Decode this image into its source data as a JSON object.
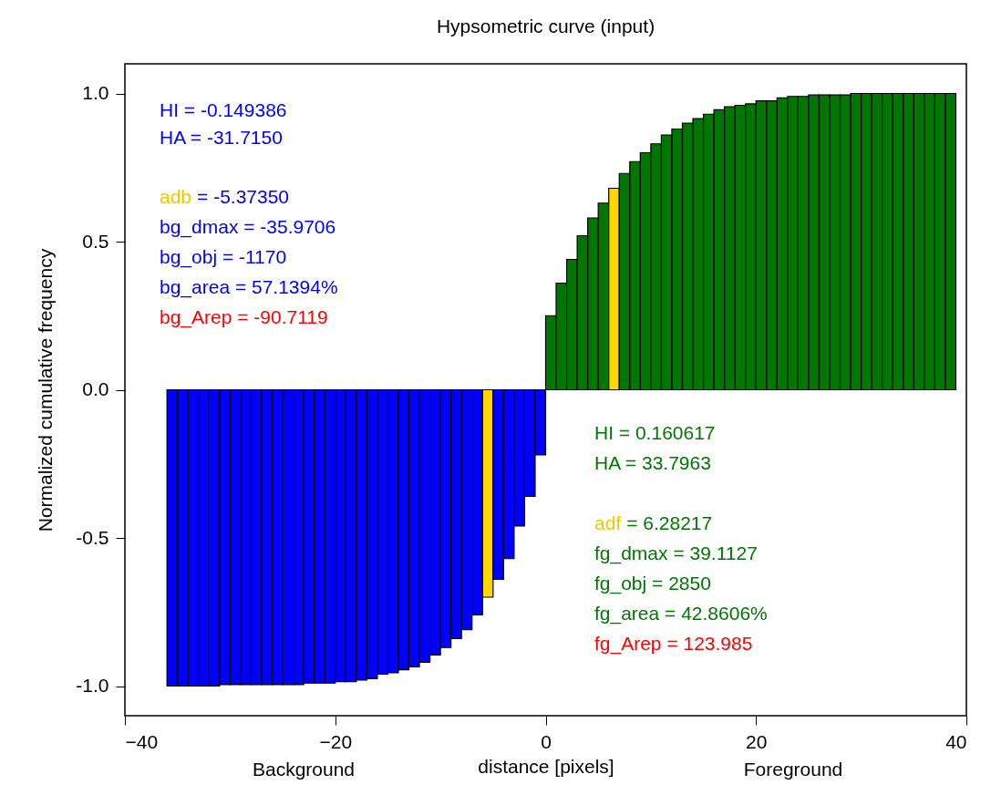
{
  "chart_data": {
    "type": "histogram",
    "title": "Hypsometric curve (input)",
    "xlabel": "distance [pixels]",
    "ylabel": "Normalized cumulative frequency",
    "bins": [
      -36,
      -35,
      -34,
      -33,
      -32,
      -31,
      -30,
      -29,
      -28,
      -27,
      -26,
      -25,
      -24,
      -23,
      -22,
      -21,
      -20,
      -19,
      -18,
      -17,
      -16,
      -15,
      -14,
      -13,
      -12,
      -11,
      -10,
      -9,
      -8,
      -7,
      -6,
      -5,
      -4,
      -3,
      -2,
      -1,
      0,
      1,
      2,
      3,
      4,
      5,
      6,
      7,
      8,
      9,
      10,
      11,
      12,
      13,
      14,
      15,
      16,
      17,
      18,
      19,
      20,
      21,
      22,
      23,
      24,
      25,
      26,
      27,
      28,
      29,
      30,
      31,
      32,
      33,
      34,
      35,
      36,
      37,
      38,
      39
    ],
    "values": [
      -1.0,
      -1.0,
      -1.0,
      -1.0,
      -1.0,
      -0.995,
      -0.995,
      -0.995,
      -0.995,
      -0.995,
      -0.995,
      -0.995,
      -0.995,
      -0.99,
      -0.99,
      -0.99,
      -0.985,
      -0.985,
      -0.98,
      -0.975,
      -0.96,
      -0.955,
      -0.945,
      -0.935,
      -0.92,
      -0.895,
      -0.87,
      -0.84,
      -0.81,
      -0.76,
      -0.7,
      -0.64,
      -0.57,
      -0.46,
      -0.36,
      -0.22,
      0.25,
      0.36,
      0.44,
      0.52,
      0.58,
      0.63,
      0.68,
      0.73,
      0.77,
      0.8,
      0.83,
      0.86,
      0.88,
      0.9,
      0.915,
      0.93,
      0.945,
      0.955,
      0.96,
      0.965,
      0.975,
      0.975,
      0.985,
      0.99,
      0.99,
      0.995,
      0.995,
      0.995,
      0.995,
      1.0,
      1.0,
      1.0,
      1.0,
      1.0,
      1.0,
      1.0,
      1.0,
      1.0,
      1.0
    ],
    "colors": [
      "#0000ff",
      "#0000ff",
      "#0000ff",
      "#0000ff",
      "#0000ff",
      "#0000ff",
      "#0000ff",
      "#0000ff",
      "#0000ff",
      "#0000ff",
      "#0000ff",
      "#0000ff",
      "#0000ff",
      "#0000ff",
      "#0000ff",
      "#0000ff",
      "#0000ff",
      "#0000ff",
      "#0000ff",
      "#0000ff",
      "#0000ff",
      "#0000ff",
      "#0000ff",
      "#0000ff",
      "#0000ff",
      "#0000ff",
      "#0000ff",
      "#0000ff",
      "#0000ff",
      "#0000ff",
      "#ffd700",
      "#0000ff",
      "#0000ff",
      "#0000ff",
      "#0000ff",
      "#0000ff",
      "#007700",
      "#007700",
      "#007700",
      "#007700",
      "#007700",
      "#007700",
      "#ffd700",
      "#007700",
      "#007700",
      "#007700",
      "#007700",
      "#007700",
      "#007700",
      "#007700",
      "#007700",
      "#007700",
      "#007700",
      "#007700",
      "#007700",
      "#007700",
      "#007700",
      "#007700",
      "#007700",
      "#007700",
      "#007700",
      "#007700",
      "#007700",
      "#007700",
      "#007700",
      "#007700",
      "#007700",
      "#007700",
      "#007700",
      "#007700",
      "#007700",
      "#007700",
      "#007700",
      "#007700",
      "#007700"
    ],
    "xlim": [
      -40,
      40
    ],
    "xticks": [
      -40,
      -20,
      0,
      20,
      40
    ],
    "ylim": [
      -1.1,
      1.1
    ],
    "yticks": [
      {
        "value": -1,
        "label": "-1.0"
      },
      {
        "value": -0.5,
        "label": "-0.5"
      },
      {
        "value": 0,
        "label": "0.0"
      },
      {
        "value": 0.5,
        "label": "0.5"
      },
      {
        "value": 1,
        "label": "1.0"
      }
    ],
    "annotations": [
      "HI = -0.149386",
      "HA = -31.7150",
      "adb = -5.37350",
      "bg_dmax = -35.9706",
      "bg_obj = -1170",
      "bg_area = 57.1394%",
      "bg_Arep = -90.7119",
      "HI = 0.160617",
      "HA = 33.7963",
      "adf = 6.28217",
      "fg_dmax = 39.1127",
      "fg_obj = 2850",
      "fg_area = 42.8606%",
      "fg_Arep = 123.985",
      "Background",
      "Foreground"
    ]
  }
}
